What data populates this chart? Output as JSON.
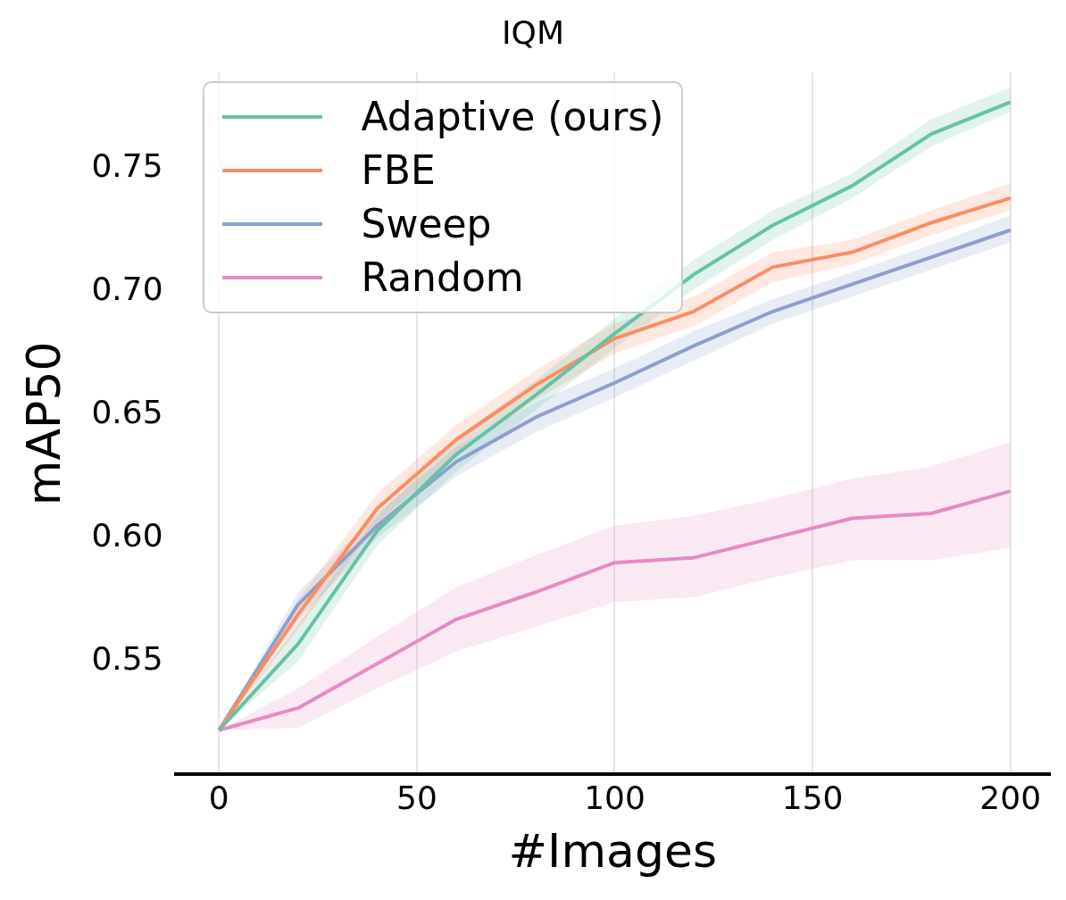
{
  "chart_data": {
    "type": "line",
    "title": "IQM",
    "xlabel": "#Images",
    "ylabel": "mAP50",
    "x": [
      0,
      20,
      40,
      60,
      80,
      100,
      120,
      140,
      160,
      180,
      200
    ],
    "series": [
      {
        "name": "Adaptive (ours)",
        "color": "#66c2a5",
        "values": [
          0.522,
          0.557,
          0.603,
          0.634,
          0.658,
          0.683,
          0.707,
          0.727,
          0.743,
          0.764,
          0.777
        ],
        "lower": [
          0.522,
          0.55,
          0.597,
          0.627,
          0.652,
          0.677,
          0.701,
          0.721,
          0.738,
          0.759,
          0.773
        ],
        "upper": [
          0.522,
          0.565,
          0.609,
          0.641,
          0.664,
          0.689,
          0.713,
          0.733,
          0.748,
          0.77,
          0.783
        ]
      },
      {
        "name": "FBE",
        "color": "#fc8d62",
        "values": [
          0.522,
          0.569,
          0.612,
          0.64,
          0.662,
          0.681,
          0.692,
          0.71,
          0.716,
          0.728,
          0.738
        ],
        "lower": [
          0.522,
          0.563,
          0.606,
          0.634,
          0.656,
          0.675,
          0.686,
          0.704,
          0.711,
          0.723,
          0.733
        ],
        "upper": [
          0.522,
          0.575,
          0.618,
          0.646,
          0.668,
          0.687,
          0.698,
          0.716,
          0.721,
          0.733,
          0.744
        ]
      },
      {
        "name": "Sweep",
        "color": "#8da0cb",
        "values": [
          0.522,
          0.573,
          0.605,
          0.631,
          0.649,
          0.663,
          0.678,
          0.692,
          0.703,
          0.714,
          0.725
        ],
        "lower": [
          0.522,
          0.567,
          0.6,
          0.625,
          0.643,
          0.657,
          0.672,
          0.687,
          0.698,
          0.709,
          0.72
        ],
        "upper": [
          0.522,
          0.578,
          0.61,
          0.637,
          0.655,
          0.669,
          0.684,
          0.697,
          0.708,
          0.719,
          0.731
        ]
      },
      {
        "name": "Random",
        "color": "#e78ac3",
        "values": [
          0.522,
          0.531,
          0.549,
          0.567,
          0.578,
          0.59,
          0.592,
          0.6,
          0.608,
          0.61,
          0.619
        ],
        "lower": [
          0.522,
          0.523,
          0.539,
          0.554,
          0.564,
          0.574,
          0.576,
          0.584,
          0.591,
          0.591,
          0.596
        ],
        "upper": [
          0.522,
          0.539,
          0.56,
          0.58,
          0.593,
          0.605,
          0.609,
          0.616,
          0.624,
          0.629,
          0.639
        ]
      }
    ],
    "xlim": [
      -11,
      210
    ],
    "ylim": [
      0.504,
      0.789
    ],
    "xticks": [
      0,
      50,
      100,
      150,
      200
    ],
    "yticks": [
      0.55,
      {
        "value": 0.6,
        "label": "0.60"
      },
      0.65,
      {
        "value": 0.7,
        "label": "0.70"
      },
      0.75
    ],
    "grid": "x",
    "legend": "top left",
    "marker": "none",
    "line_style": "solid"
  }
}
